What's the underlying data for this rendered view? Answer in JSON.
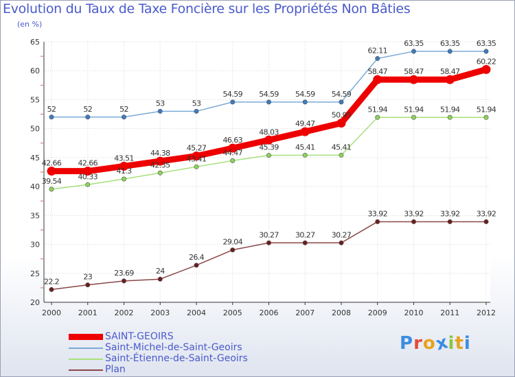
{
  "title": "Evolution du Taux de Taxe Foncière sur les Propriétés Non Bâties",
  "subtitle": "(en %)",
  "logo": {
    "text": "Proxiti",
    "colors": [
      "#3c8de0",
      "#e34b3a",
      "#e7a21e",
      "#3c8de0",
      "#8bc53f",
      "#e7a21e",
      "#3c8de0"
    ]
  },
  "chart_data": {
    "type": "line",
    "title": "Evolution du Taux de Taxe Foncière sur les Propriétés Non Bâties",
    "ylabel": "(en %)",
    "xlabel": "",
    "ylim": [
      20,
      65
    ],
    "yticks": [
      20,
      25,
      30,
      35,
      40,
      45,
      50,
      55,
      60,
      65
    ],
    "grid": true,
    "categories": [
      "2000",
      "2001",
      "2002",
      "2003",
      "2004",
      "2005",
      "2006",
      "2007",
      "2008",
      "2009",
      "2010",
      "2011",
      "2012"
    ],
    "series": [
      {
        "name": "SAINT-GEOIRS",
        "color": "#ee0000",
        "marker": "#ee0000",
        "values": [
          42.66,
          42.66,
          43.51,
          44.38,
          45.27,
          46.63,
          48.03,
          49.47,
          50.95,
          58.47,
          58.47,
          58.47,
          60.22
        ],
        "labels": [
          "42.66",
          "42.66",
          "43.51",
          "44.38",
          "45.27",
          "46.63",
          "48.03",
          "49.47",
          "50.95",
          "58.47",
          "58.47",
          "58.47",
          "60.22"
        ]
      },
      {
        "name": "Saint-Michel-de-Saint-Geoirs",
        "color": "#7aaad6",
        "marker": "#3d7bbf",
        "values": [
          52,
          52,
          52,
          53,
          53,
          54.59,
          54.59,
          54.59,
          54.59,
          62.11,
          63.35,
          63.35,
          63.35
        ],
        "labels": [
          "52",
          "52",
          "52",
          "53",
          "53",
          "54.59",
          "54.59",
          "54.59",
          "54.59",
          "62.11",
          "63.35",
          "63.35",
          "63.35"
        ]
      },
      {
        "name": "Saint-Étienne-de-Saint-Geoirs",
        "color": "#a6e07a",
        "marker": "#8cd35a",
        "values": [
          39.54,
          40.33,
          41.3,
          42.35,
          43.41,
          44.47,
          45.39,
          45.41,
          45.41,
          51.94,
          51.94,
          51.94,
          51.94
        ],
        "labels": [
          "39.54",
          "40.33",
          "41.3",
          "42.35",
          "43.41",
          "44.47",
          "45.39",
          "45.41",
          "45.41",
          "51.94",
          "51.94",
          "51.94",
          "51.94"
        ]
      },
      {
        "name": "Plan",
        "color": "#8a4646",
        "marker": "#6b1e1e",
        "values": [
          22.2,
          23,
          23.69,
          24,
          26.4,
          29.04,
          30.27,
          30.27,
          30.27,
          33.92,
          33.92,
          33.92,
          33.92
        ],
        "labels": [
          "22.2",
          "23",
          "23.69",
          "24",
          "26.4",
          "29.04",
          "30.27",
          "30.27",
          "30.27",
          "33.92",
          "33.92",
          "33.92",
          "33.92"
        ]
      }
    ]
  }
}
